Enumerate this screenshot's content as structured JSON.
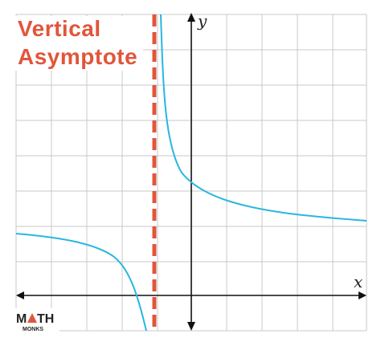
{
  "title": {
    "line1": "Vertical",
    "line2": "Asymptote"
  },
  "axes": {
    "x": "x",
    "y": "y"
  },
  "logo": {
    "start": "M",
    "end": "TH",
    "sub": "MONKS"
  }
}
